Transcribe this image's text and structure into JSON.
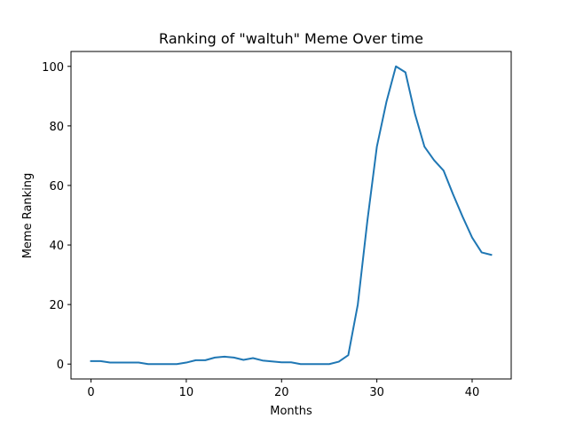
{
  "chart_data": {
    "type": "line",
    "title": "Ranking of \"waltuh\" Meme Over time",
    "xlabel": "Months",
    "ylabel": "Meme Ranking",
    "xlim": [
      -2.1,
      44.1
    ],
    "ylim": [
      -5,
      105
    ],
    "xticks": [
      0,
      10,
      20,
      30,
      40
    ],
    "yticks": [
      0,
      20,
      40,
      60,
      80,
      100
    ],
    "grid": false,
    "series": [
      {
        "color": "#1f77b4",
        "x": [
          0,
          1,
          2,
          3,
          4,
          5,
          6,
          7,
          8,
          9,
          10,
          11,
          12,
          13,
          14,
          15,
          16,
          17,
          18,
          19,
          20,
          21,
          22,
          23,
          24,
          25,
          26,
          27,
          28,
          29,
          30,
          31,
          32,
          33,
          34,
          35,
          36,
          37,
          38,
          39,
          40,
          41,
          42
        ],
        "values": [
          1,
          1,
          0.5,
          0.5,
          0.5,
          0.5,
          0,
          0,
          0,
          0,
          0.5,
          1.3,
          1.3,
          2.2,
          2.5,
          2.2,
          1.4,
          2,
          1.2,
          0.9,
          0.6,
          0.6,
          0,
          0,
          0,
          0,
          0.8,
          3,
          20,
          48,
          73,
          88,
          100,
          98,
          84,
          73,
          68.5,
          65,
          57,
          49.5,
          42.5,
          37.5,
          36.7
        ]
      }
    ]
  }
}
